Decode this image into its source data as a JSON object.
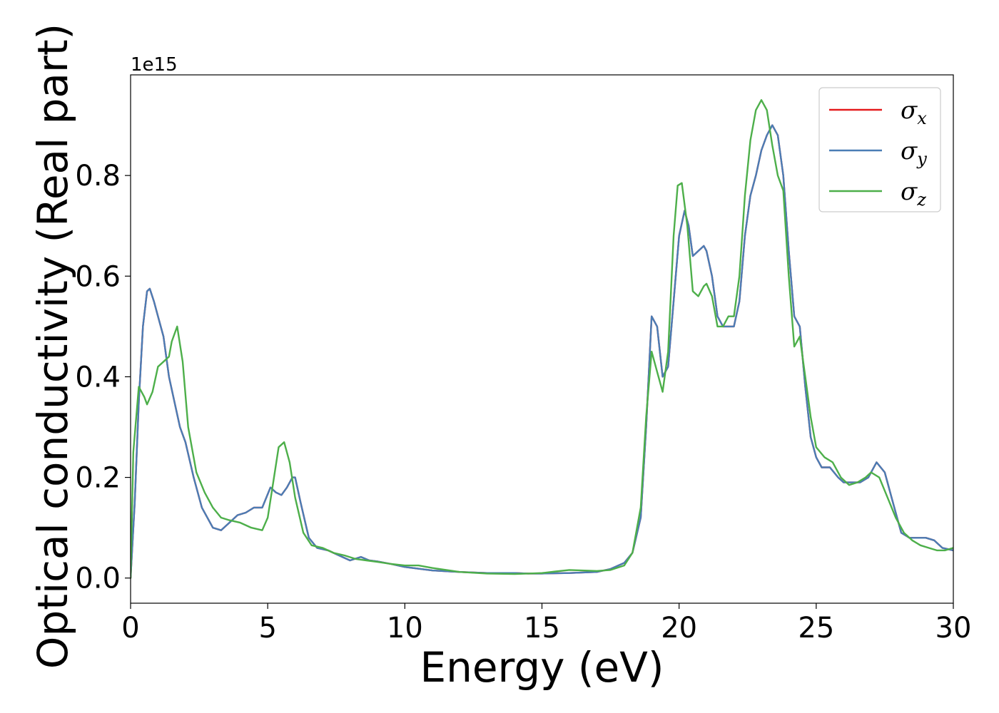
{
  "chart_data": {
    "type": "line",
    "title": "",
    "xlabel": "Energy (eV)",
    "ylabel": "Optical conductivity (Real part)",
    "y_offset_label": "1e15",
    "xlim": [
      0,
      30
    ],
    "ylim": [
      -0.05,
      1.0
    ],
    "xticks": [
      0,
      5,
      10,
      15,
      20,
      25,
      30
    ],
    "xtick_labels": [
      "0",
      "5",
      "10",
      "15",
      "20",
      "25",
      "30"
    ],
    "yticks": [
      0.0,
      0.2,
      0.4,
      0.6,
      0.8
    ],
    "ytick_labels": [
      "0.0",
      "0.2",
      "0.4",
      "0.6",
      "0.8"
    ],
    "grid": false,
    "legend_position": "top-right",
    "series": [
      {
        "name": "σx",
        "symbol": "σ",
        "subscript": "x",
        "color": "#e41a1c",
        "x": [
          0,
          0.15,
          0.3,
          0.45,
          0.6,
          0.7,
          0.85,
          1.0,
          1.2,
          1.4,
          1.6,
          1.8,
          2.0,
          2.3,
          2.6,
          3.0,
          3.3,
          3.6,
          3.9,
          4.2,
          4.5,
          4.8,
          5.1,
          5.3,
          5.5,
          5.7,
          5.9,
          6.0,
          6.2,
          6.5,
          6.8,
          7.2,
          7.6,
          8.0,
          8.4,
          8.7,
          9.0,
          9.5,
          10,
          11,
          12,
          13,
          14,
          14.5,
          15,
          16,
          17,
          17.5,
          18,
          18.3,
          18.6,
          18.8,
          19.0,
          19.2,
          19.4,
          19.6,
          19.8,
          20.0,
          20.2,
          20.35,
          20.5,
          20.7,
          20.9,
          21.0,
          21.2,
          21.4,
          21.6,
          21.8,
          22.0,
          22.2,
          22.4,
          22.6,
          22.8,
          23.0,
          23.2,
          23.4,
          23.6,
          23.8,
          24.0,
          24.2,
          24.4,
          24.6,
          24.8,
          25.0,
          25.2,
          25.5,
          25.8,
          26.0,
          26.3,
          26.6,
          26.9,
          27.2,
          27.5,
          27.8,
          28.1,
          28.4,
          28.7,
          29.0,
          29.3,
          29.6,
          30.0
        ],
        "y": [
          0.0,
          0.15,
          0.35,
          0.5,
          0.57,
          0.575,
          0.55,
          0.52,
          0.48,
          0.4,
          0.35,
          0.3,
          0.27,
          0.2,
          0.14,
          0.1,
          0.095,
          0.11,
          0.125,
          0.13,
          0.14,
          0.14,
          0.18,
          0.17,
          0.165,
          0.18,
          0.2,
          0.2,
          0.15,
          0.08,
          0.06,
          0.055,
          0.045,
          0.035,
          0.042,
          0.035,
          0.033,
          0.028,
          0.022,
          0.015,
          0.012,
          0.01,
          0.01,
          0.009,
          0.009,
          0.01,
          0.012,
          0.018,
          0.03,
          0.05,
          0.12,
          0.3,
          0.52,
          0.5,
          0.4,
          0.42,
          0.55,
          0.68,
          0.73,
          0.7,
          0.64,
          0.65,
          0.66,
          0.65,
          0.6,
          0.52,
          0.5,
          0.5,
          0.5,
          0.55,
          0.68,
          0.76,
          0.8,
          0.85,
          0.88,
          0.9,
          0.88,
          0.8,
          0.65,
          0.52,
          0.5,
          0.38,
          0.28,
          0.24,
          0.22,
          0.22,
          0.2,
          0.19,
          0.19,
          0.19,
          0.2,
          0.23,
          0.21,
          0.15,
          0.09,
          0.08,
          0.08,
          0.08,
          0.075,
          0.06,
          0.055
        ]
      },
      {
        "name": "σy",
        "symbol": "σ",
        "subscript": "y",
        "color": "#4a7db5",
        "x": [
          0,
          0.15,
          0.3,
          0.45,
          0.6,
          0.7,
          0.85,
          1.0,
          1.2,
          1.4,
          1.6,
          1.8,
          2.0,
          2.3,
          2.6,
          3.0,
          3.3,
          3.6,
          3.9,
          4.2,
          4.5,
          4.8,
          5.1,
          5.3,
          5.5,
          5.7,
          5.9,
          6.0,
          6.2,
          6.5,
          6.8,
          7.2,
          7.6,
          8.0,
          8.4,
          8.7,
          9.0,
          9.5,
          10,
          11,
          12,
          13,
          14,
          14.5,
          15,
          16,
          17,
          17.5,
          18,
          18.3,
          18.6,
          18.8,
          19.0,
          19.2,
          19.4,
          19.6,
          19.8,
          20.0,
          20.2,
          20.35,
          20.5,
          20.7,
          20.9,
          21.0,
          21.2,
          21.4,
          21.6,
          21.8,
          22.0,
          22.2,
          22.4,
          22.6,
          22.8,
          23.0,
          23.2,
          23.4,
          23.6,
          23.8,
          24.0,
          24.2,
          24.4,
          24.6,
          24.8,
          25.0,
          25.2,
          25.5,
          25.8,
          26.0,
          26.3,
          26.6,
          26.9,
          27.2,
          27.5,
          27.8,
          28.1,
          28.4,
          28.7,
          29.0,
          29.3,
          29.6,
          30.0
        ],
        "y": [
          0.0,
          0.15,
          0.35,
          0.5,
          0.57,
          0.575,
          0.55,
          0.52,
          0.48,
          0.4,
          0.35,
          0.3,
          0.27,
          0.2,
          0.14,
          0.1,
          0.095,
          0.11,
          0.125,
          0.13,
          0.14,
          0.14,
          0.18,
          0.17,
          0.165,
          0.18,
          0.2,
          0.2,
          0.15,
          0.08,
          0.06,
          0.055,
          0.045,
          0.035,
          0.042,
          0.035,
          0.033,
          0.028,
          0.022,
          0.015,
          0.012,
          0.01,
          0.01,
          0.009,
          0.009,
          0.01,
          0.012,
          0.018,
          0.03,
          0.05,
          0.12,
          0.3,
          0.52,
          0.5,
          0.4,
          0.42,
          0.55,
          0.68,
          0.73,
          0.7,
          0.64,
          0.65,
          0.66,
          0.65,
          0.6,
          0.52,
          0.5,
          0.5,
          0.5,
          0.55,
          0.68,
          0.76,
          0.8,
          0.85,
          0.88,
          0.9,
          0.88,
          0.8,
          0.65,
          0.52,
          0.5,
          0.38,
          0.28,
          0.24,
          0.22,
          0.22,
          0.2,
          0.19,
          0.19,
          0.19,
          0.2,
          0.23,
          0.21,
          0.15,
          0.09,
          0.08,
          0.08,
          0.08,
          0.075,
          0.06,
          0.055
        ]
      },
      {
        "name": "σz",
        "symbol": "σ",
        "subscript": "z",
        "color": "#4daf4a",
        "x": [
          0,
          0.1,
          0.3,
          0.5,
          0.6,
          0.8,
          1.0,
          1.2,
          1.4,
          1.5,
          1.7,
          1.9,
          2.1,
          2.4,
          2.7,
          3.0,
          3.3,
          3.6,
          4.0,
          4.4,
          4.8,
          5.0,
          5.2,
          5.4,
          5.6,
          5.8,
          6.0,
          6.3,
          6.6,
          7.0,
          7.4,
          7.8,
          8.2,
          8.6,
          9.0,
          9.5,
          10,
          10.5,
          11,
          12,
          13,
          14,
          14.5,
          15,
          15.5,
          16,
          17,
          17.5,
          18,
          18.3,
          18.6,
          18.8,
          19.0,
          19.2,
          19.4,
          19.6,
          19.8,
          19.95,
          20.1,
          20.3,
          20.5,
          20.7,
          20.9,
          21.0,
          21.2,
          21.4,
          21.6,
          21.8,
          22.0,
          22.2,
          22.4,
          22.6,
          22.8,
          23.0,
          23.2,
          23.4,
          23.6,
          23.8,
          24.0,
          24.2,
          24.4,
          24.6,
          24.8,
          25.0,
          25.3,
          25.6,
          25.9,
          26.2,
          26.5,
          26.8,
          27.0,
          27.3,
          27.6,
          27.9,
          28.2,
          28.5,
          28.8,
          29.1,
          29.4,
          29.7,
          30.0
        ],
        "y": [
          0.0,
          0.25,
          0.38,
          0.36,
          0.345,
          0.37,
          0.42,
          0.43,
          0.44,
          0.47,
          0.5,
          0.43,
          0.3,
          0.21,
          0.17,
          0.14,
          0.12,
          0.115,
          0.11,
          0.1,
          0.095,
          0.12,
          0.19,
          0.26,
          0.27,
          0.23,
          0.16,
          0.09,
          0.065,
          0.06,
          0.05,
          0.045,
          0.038,
          0.035,
          0.032,
          0.028,
          0.025,
          0.025,
          0.02,
          0.012,
          0.009,
          0.008,
          0.009,
          0.01,
          0.013,
          0.016,
          0.014,
          0.016,
          0.025,
          0.05,
          0.14,
          0.32,
          0.45,
          0.41,
          0.37,
          0.45,
          0.68,
          0.78,
          0.785,
          0.7,
          0.57,
          0.56,
          0.58,
          0.585,
          0.56,
          0.5,
          0.5,
          0.52,
          0.52,
          0.6,
          0.76,
          0.87,
          0.93,
          0.95,
          0.93,
          0.86,
          0.8,
          0.77,
          0.6,
          0.46,
          0.48,
          0.4,
          0.32,
          0.26,
          0.24,
          0.23,
          0.2,
          0.185,
          0.19,
          0.2,
          0.21,
          0.2,
          0.16,
          0.12,
          0.09,
          0.075,
          0.065,
          0.06,
          0.055,
          0.055,
          0.06
        ]
      }
    ]
  }
}
